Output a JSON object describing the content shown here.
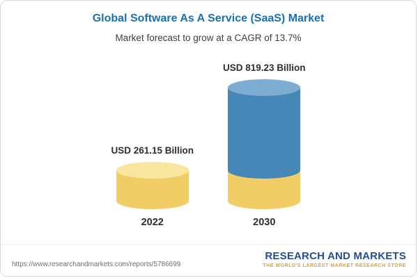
{
  "header": {
    "title": "Global Software As A Service (SaaS) Market",
    "subtitle": "Market forecast to grow at a CAGR of 13.7%"
  },
  "chart_data": {
    "type": "bar",
    "style": "3d-cylinder",
    "categories": [
      "2022",
      "2030"
    ],
    "values": [
      261.15,
      819.23
    ],
    "value_labels": [
      "USD 261.15 Billion",
      "USD 819.23 Billion"
    ],
    "unit": "USD Billion",
    "cagr_percent": 13.7,
    "ylim": [
      0,
      860
    ],
    "grid": false,
    "legend": "none",
    "colors": {
      "gold_body": "#F2CD66",
      "gold_top": "#F8E69F",
      "blue_body": "#4587B7",
      "blue_top": "#7DADD0"
    }
  },
  "colors": {
    "title_blue": "#1A70B4",
    "logo_navy": "#234E96",
    "logo_gold": "#E3A02F"
  },
  "footer": {
    "report_url": "https://www.researchandmarkets.com/reports/5786699",
    "logo_name": "RESEARCH AND MARKETS",
    "logo_tagline": "THE WORLD'S LARGEST MARKET RESEARCH STORE"
  }
}
